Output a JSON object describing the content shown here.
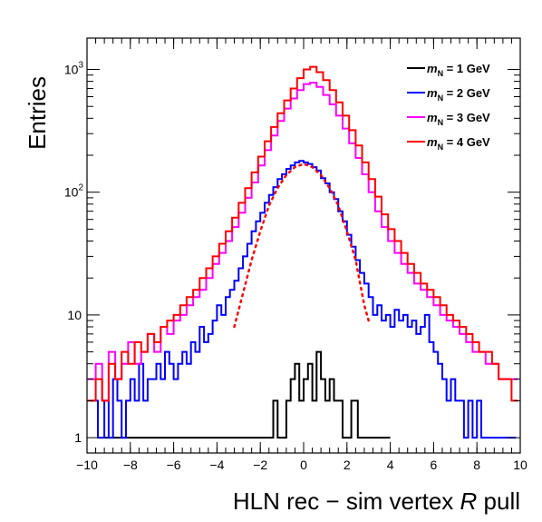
{
  "chart_data": {
    "type": "line",
    "xlabel_parts": [
      "HLN rec − sim vertex ",
      "R",
      " pull"
    ],
    "ylabel": "Entries",
    "xlim": [
      -10,
      10
    ],
    "ylim": [
      0.75,
      1800
    ],
    "y_scale": "log",
    "x_ticks": [
      -10,
      -8,
      -6,
      -4,
      -2,
      0,
      2,
      4,
      6,
      8,
      10
    ],
    "x_tick_labels": [
      "−10",
      "−8",
      "−6",
      "−4",
      "−2",
      "0",
      "2",
      "4",
      "6",
      "8",
      "10"
    ],
    "y_ticks": [
      {
        "value": 1,
        "base": "1",
        "exp": ""
      },
      {
        "value": 10,
        "base": "10",
        "exp": ""
      },
      {
        "value": 100,
        "base": "10",
        "exp": "2"
      },
      {
        "value": 1000,
        "base": "10",
        "exp": "3"
      }
    ],
    "legend_position": "top-right",
    "series": [
      {
        "label_var": "m",
        "label_sub": "N",
        "label_rest": " = 1 GeV",
        "color": "#000000",
        "style": "step",
        "x": [
          -9.2,
          -8.7,
          -8.5,
          -7.5,
          -7.1,
          -6.6,
          -6.0,
          -5.6,
          -4.8,
          -4.3,
          -4.0,
          -3.6,
          -3.3,
          -3.1,
          -2.9,
          -2.6,
          -2.4,
          -2.1,
          -1.8,
          -1.6,
          -1.4,
          -1.2,
          -1.0,
          -0.8,
          -0.6,
          -0.4,
          -0.2,
          0.0,
          0.2,
          0.4,
          0.6,
          0.8,
          1.0,
          1.2,
          1.4,
          1.6,
          1.8,
          2.0,
          2.2,
          2.5,
          2.8,
          3.2,
          3.7
        ],
        "y": [
          1,
          1,
          1,
          1,
          1,
          1,
          1,
          1,
          1,
          1,
          1,
          1,
          1,
          1,
          1,
          1,
          1,
          1,
          1,
          1,
          2,
          1,
          1,
          2,
          3,
          4,
          2,
          3,
          4,
          2,
          5,
          3,
          2,
          3,
          2,
          2,
          1,
          1,
          2,
          1,
          1,
          1,
          1
        ]
      },
      {
        "label_var": "m",
        "label_sub": "N",
        "label_rest": " = 2 GeV",
        "color": "#0000ff",
        "style": "step",
        "x": [
          -9.8,
          -9.5,
          -9.2,
          -9.0,
          -8.8,
          -8.6,
          -8.4,
          -8.2,
          -8.0,
          -7.8,
          -7.6,
          -7.4,
          -7.2,
          -7.0,
          -6.8,
          -6.6,
          -6.4,
          -6.2,
          -6.0,
          -5.8,
          -5.6,
          -5.4,
          -5.2,
          -5.0,
          -4.8,
          -4.6,
          -4.4,
          -4.2,
          -4.0,
          -3.8,
          -3.6,
          -3.4,
          -3.2,
          -3.0,
          -2.8,
          -2.6,
          -2.4,
          -2.2,
          -2.0,
          -1.8,
          -1.6,
          -1.4,
          -1.2,
          -1.0,
          -0.8,
          -0.6,
          -0.4,
          -0.2,
          0.0,
          0.2,
          0.4,
          0.6,
          0.8,
          1.0,
          1.2,
          1.4,
          1.6,
          1.8,
          2.0,
          2.2,
          2.4,
          2.6,
          2.8,
          3.0,
          3.2,
          3.4,
          3.6,
          3.8,
          4.0,
          4.2,
          4.4,
          4.6,
          4.8,
          5.0,
          5.2,
          5.4,
          5.6,
          5.8,
          6.0,
          6.2,
          6.4,
          6.6,
          6.8,
          7.0,
          7.2,
          7.4,
          7.6,
          7.8,
          8.0,
          8.2,
          8.4,
          8.6,
          8.8,
          9.0,
          9.2,
          9.5
        ],
        "y": [
          2,
          1,
          2,
          1,
          3,
          2,
          1,
          2,
          3,
          2,
          4,
          2,
          3,
          3,
          4,
          3,
          5,
          4,
          3,
          4,
          5,
          4,
          6,
          5,
          8,
          6,
          7,
          9,
          12,
          10,
          14,
          16,
          19,
          24,
          30,
          38,
          48,
          58,
          68,
          82,
          95,
          110,
          128,
          140,
          155,
          165,
          175,
          180,
          175,
          170,
          160,
          150,
          130,
          118,
          100,
          88,
          70,
          58,
          45,
          36,
          28,
          22,
          18,
          14,
          10,
          12,
          9,
          10,
          8,
          11,
          9,
          10,
          8,
          9,
          7,
          8,
          10,
          6,
          5,
          4,
          3,
          2,
          3,
          2,
          2,
          1,
          2,
          1,
          2,
          1,
          1,
          1,
          1,
          1,
          1,
          1
        ],
        "fit": {
          "x": [
            -3.2,
            -2.8,
            -2.4,
            -2.0,
            -1.6,
            -1.2,
            -0.8,
            -0.4,
            0.0,
            0.4,
            0.8,
            1.2,
            1.6,
            2.0,
            2.4,
            2.8,
            3.0
          ],
          "y": [
            8,
            15,
            28,
            48,
            78,
            108,
            138,
            160,
            170,
            160,
            138,
            108,
            78,
            48,
            28,
            12,
            9
          ]
        }
      },
      {
        "label_var": "m",
        "label_sub": "N",
        "label_rest": " = 3 GeV",
        "color": "#ff00ff",
        "style": "step",
        "x": [
          -10.0,
          -9.6,
          -9.3,
          -9.0,
          -8.7,
          -8.4,
          -8.1,
          -7.8,
          -7.5,
          -7.2,
          -6.9,
          -6.6,
          -6.3,
          -6.0,
          -5.7,
          -5.4,
          -5.1,
          -4.8,
          -4.5,
          -4.2,
          -3.9,
          -3.6,
          -3.3,
          -3.0,
          -2.7,
          -2.4,
          -2.1,
          -1.8,
          -1.5,
          -1.2,
          -0.9,
          -0.6,
          -0.3,
          0.0,
          0.3,
          0.6,
          0.9,
          1.2,
          1.5,
          1.8,
          2.1,
          2.4,
          2.7,
          3.0,
          3.3,
          3.6,
          3.9,
          4.2,
          4.5,
          4.8,
          5.1,
          5.4,
          5.7,
          6.0,
          6.3,
          6.6,
          6.9,
          7.2,
          7.5,
          7.8,
          8.1,
          8.4,
          8.7,
          9.0,
          9.3,
          9.6
        ],
        "y": [
          3,
          4,
          2,
          5,
          3,
          4,
          6,
          4,
          5,
          7,
          5,
          8,
          7,
          9,
          10,
          12,
          14,
          16,
          20,
          26,
          32,
          40,
          52,
          68,
          90,
          120,
          165,
          220,
          290,
          380,
          480,
          580,
          680,
          760,
          780,
          720,
          620,
          520,
          420,
          330,
          250,
          190,
          140,
          100,
          70,
          52,
          40,
          32,
          26,
          22,
          18,
          16,
          14,
          12,
          10,
          9,
          8,
          7,
          6,
          5,
          5,
          4,
          4,
          3,
          3,
          3
        ]
      },
      {
        "label_var": "m",
        "label_sub": "N",
        "label_rest": " = 4 GeV",
        "color": "#ff0000",
        "style": "step",
        "x": [
          -10.0,
          -9.6,
          -9.3,
          -9.0,
          -8.7,
          -8.4,
          -8.1,
          -7.8,
          -7.5,
          -7.2,
          -6.9,
          -6.6,
          -6.3,
          -6.0,
          -5.7,
          -5.4,
          -5.1,
          -4.8,
          -4.5,
          -4.2,
          -3.9,
          -3.6,
          -3.3,
          -3.0,
          -2.7,
          -2.4,
          -2.1,
          -1.8,
          -1.5,
          -1.2,
          -0.9,
          -0.6,
          -0.3,
          0.0,
          0.3,
          0.6,
          0.9,
          1.2,
          1.5,
          1.8,
          2.1,
          2.4,
          2.7,
          3.0,
          3.3,
          3.6,
          3.9,
          4.2,
          4.5,
          4.8,
          5.1,
          5.4,
          5.7,
          6.0,
          6.3,
          6.6,
          6.9,
          7.2,
          7.5,
          7.8,
          8.1,
          8.4,
          8.7,
          9.0,
          9.3,
          9.6
        ],
        "y": [
          2,
          3,
          2,
          4,
          3,
          5,
          4,
          6,
          5,
          7,
          6,
          8,
          9,
          10,
          12,
          14,
          16,
          20,
          24,
          30,
          38,
          48,
          62,
          82,
          108,
          145,
          195,
          260,
          340,
          440,
          560,
          700,
          850,
          1000,
          1050,
          950,
          820,
          680,
          540,
          420,
          320,
          240,
          175,
          128,
          92,
          66,
          50,
          40,
          32,
          26,
          22,
          18,
          16,
          14,
          12,
          10,
          9,
          8,
          7,
          6,
          5,
          5,
          4,
          3,
          3,
          2
        ]
      }
    ]
  }
}
